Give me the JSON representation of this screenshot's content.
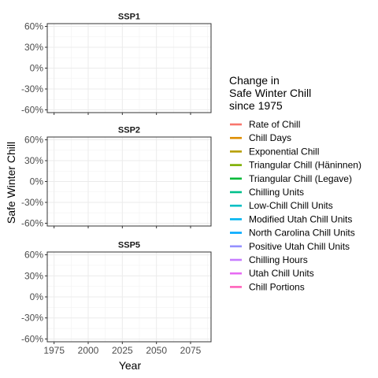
{
  "chart_data": {
    "type": "line",
    "panels": [
      "SSP1",
      "SSP2",
      "SSP5"
    ],
    "xlabel": "Year",
    "ylabel": "Safe Winter Chill",
    "x_ticks": [
      "1975",
      "2000",
      "2025",
      "2050",
      "2075"
    ],
    "x_tick_values": [
      1975,
      2000,
      2025,
      2050,
      2075
    ],
    "xlim": [
      1970,
      2090
    ],
    "y_ticks": [
      "60%",
      "30%",
      "0%",
      "-30%",
      "-60%"
    ],
    "y_tick_values": [
      60,
      30,
      0,
      -30,
      -60
    ],
    "ylim": [
      -64,
      64
    ],
    "grid": true,
    "legend_position": "right",
    "legend_title": [
      "Change in",
      "Safe Winter Chill",
      "since 1975"
    ],
    "series": [
      {
        "name": "Rate of Chill",
        "color": "#F8766D",
        "values": []
      },
      {
        "name": "Chill Days",
        "color": "#DE8C00",
        "values": []
      },
      {
        "name": "Exponential Chill",
        "color": "#B79F00",
        "values": []
      },
      {
        "name": "Triangular Chill (Häninnen)",
        "color": "#7CAE00",
        "values": []
      },
      {
        "name": "Triangular Chill (Legave)",
        "color": "#00BA38",
        "values": []
      },
      {
        "name": "Chilling Units",
        "color": "#00C08B",
        "values": []
      },
      {
        "name": "Low-Chill Chill Units",
        "color": "#00BFC4",
        "values": []
      },
      {
        "name": "Modified Utah Chill Units",
        "color": "#00B4F0",
        "values": []
      },
      {
        "name": "North Carolina Chill Units",
        "color": "#00A9FF",
        "values": []
      },
      {
        "name": "Positive Utah Chill Units",
        "color": "#9590FF",
        "values": []
      },
      {
        "name": "Chilling Hours",
        "color": "#C77CFF",
        "values": []
      },
      {
        "name": "Utah Chill Units",
        "color": "#E76BF3",
        "values": []
      },
      {
        "name": "Chill Portions",
        "color": "#FF62BC",
        "values": []
      }
    ]
  }
}
